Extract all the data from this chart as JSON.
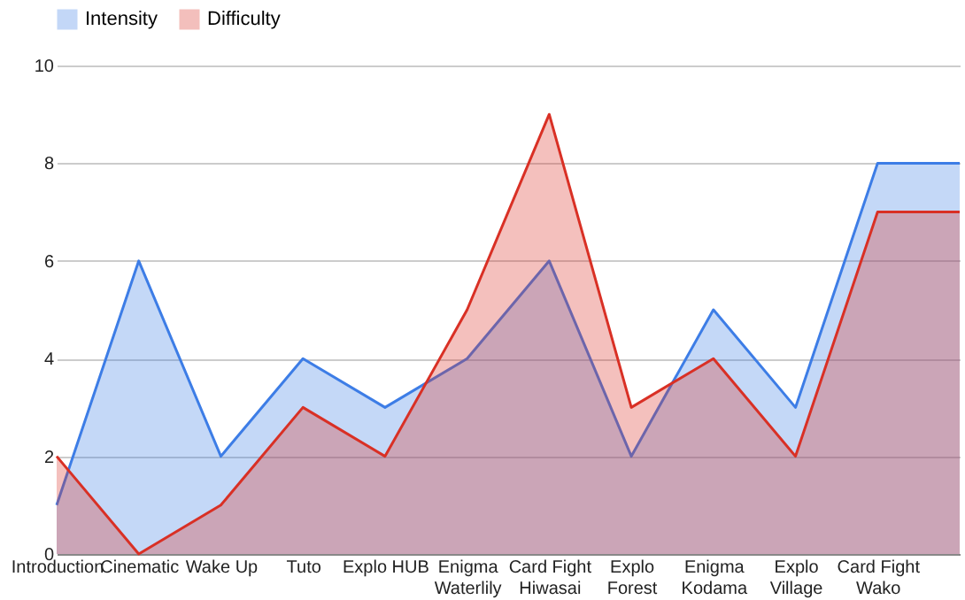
{
  "chart_data": {
    "type": "area",
    "categories": [
      "Introduction",
      "Cinematic",
      "Wake Up",
      "Tuto",
      "Explo HUB",
      "Enigma\nWaterlily",
      "Card Fight\nHiwasai",
      "Explo\nForest",
      "Enigma\nKodama",
      "Explo\nVillage",
      "Card Fight\nWako",
      null
    ],
    "series": [
      {
        "name": "Intensity",
        "color": "#3d7de6",
        "values": [
          1,
          6,
          2,
          4,
          3,
          4,
          6,
          2,
          5,
          3,
          8,
          8
        ]
      },
      {
        "name": "Difficulty",
        "color": "#d93025",
        "values": [
          2,
          0,
          1,
          3,
          2,
          5,
          9,
          3,
          4,
          2,
          7,
          7
        ]
      }
    ],
    "ylim": [
      0,
      10
    ],
    "yticks": [
      0,
      2,
      4,
      6,
      8,
      10
    ],
    "grid": "y",
    "legend": "top"
  }
}
